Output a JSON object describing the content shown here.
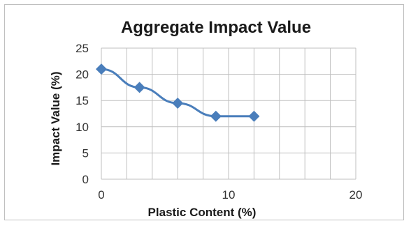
{
  "chart_data": {
    "type": "line",
    "title": "Aggregate Impact Value",
    "xlabel": "Plastic Content (%)",
    "ylabel": "Impact Value (%)",
    "xlim": [
      0,
      20
    ],
    "ylim": [
      0,
      25
    ],
    "xticks": [
      0,
      10,
      20
    ],
    "yticks": [
      0,
      5,
      10,
      15,
      20,
      25
    ],
    "grid": true,
    "legend": "none",
    "series": [
      {
        "x": [
          0,
          3,
          6,
          9,
          12
        ],
        "y": [
          21,
          17.5,
          14.5,
          12,
          12
        ],
        "color": "#4a7ebb",
        "marker": "diamond"
      }
    ]
  }
}
